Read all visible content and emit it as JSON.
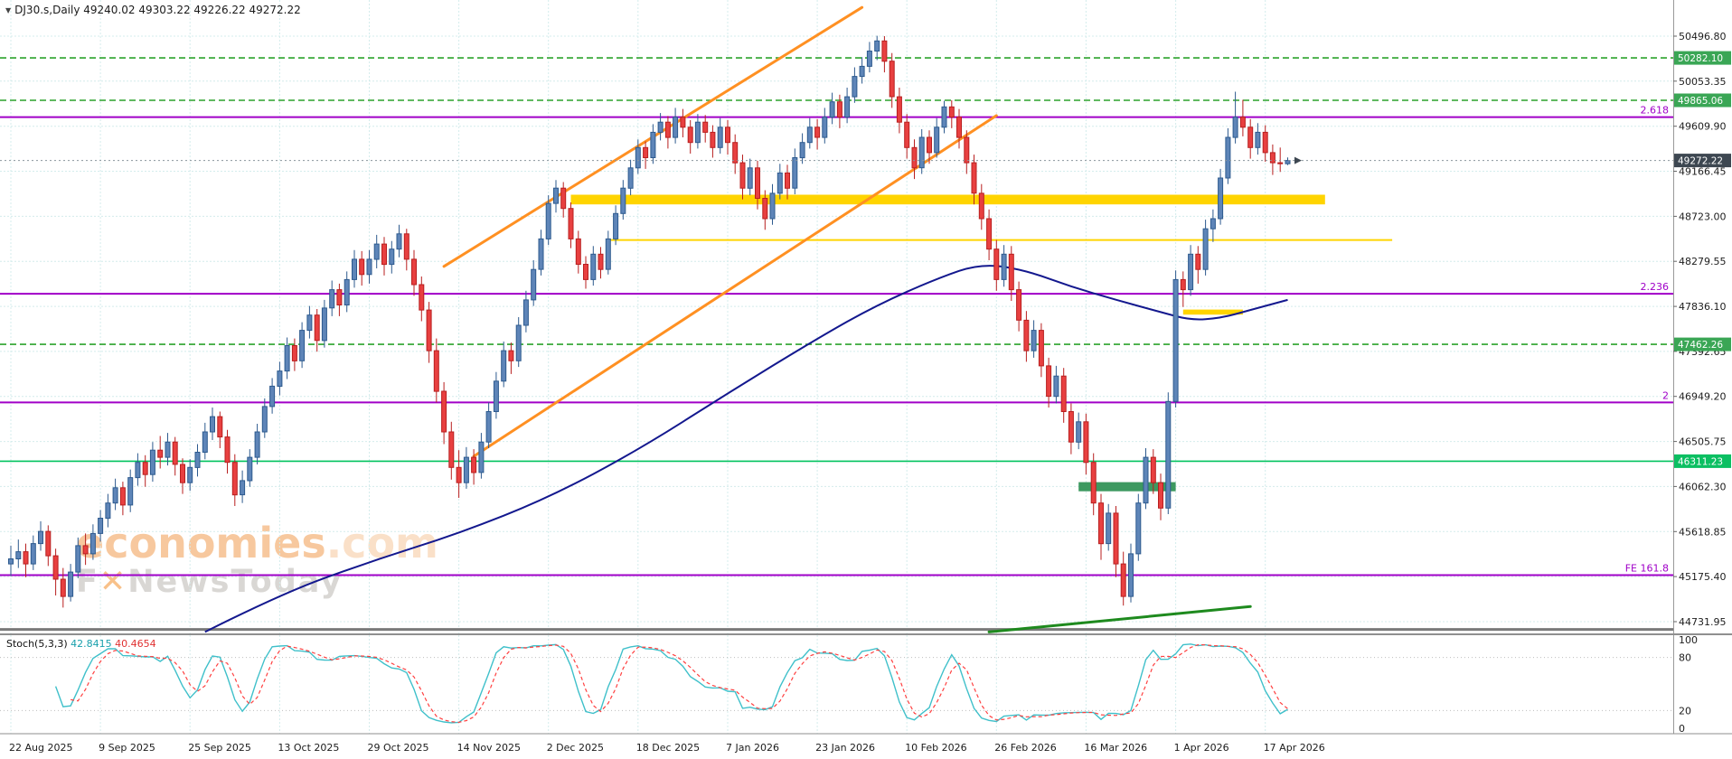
{
  "header": {
    "text": "DJ30.s,Daily 49240.02 49303.22 49226.22 49272.22"
  },
  "watermark": {
    "brand": "economies",
    "tld": ".com",
    "tag_a": "F",
    "tag_x": "✕",
    "tag_b": "NewsToday"
  },
  "chart_data": {
    "type": "candlestick",
    "symbol": "DJ30.s",
    "timeframe": "Daily",
    "current_ohlc": {
      "open": 49240.02,
      "high": 49303.22,
      "low": 49226.22,
      "close": 49272.22
    },
    "y_ticks": [
      50496.8,
      50053.35,
      49609.9,
      49166.45,
      48723.0,
      48279.55,
      47836.1,
      47392.65,
      46949.2,
      46505.75,
      46062.3,
      45618.85,
      45175.4,
      44731.95
    ],
    "x_labels": [
      {
        "bar": 0,
        "label": "22 Aug 2025"
      },
      {
        "bar": 12,
        "label": "9 Sep 2025"
      },
      {
        "bar": 24,
        "label": "25 Sep 2025"
      },
      {
        "bar": 36,
        "label": "13 Oct 2025"
      },
      {
        "bar": 48,
        "label": "29 Oct 2025"
      },
      {
        "bar": 60,
        "label": "14 Nov 2025"
      },
      {
        "bar": 72,
        "label": "2 Dec 2025"
      },
      {
        "bar": 84,
        "label": "18 Dec 2025"
      },
      {
        "bar": 96,
        "label": "7 Jan 2026"
      },
      {
        "bar": 108,
        "label": "23 Jan 2026"
      },
      {
        "bar": 120,
        "label": "10 Feb 2026"
      },
      {
        "bar": 132,
        "label": "26 Feb 2026"
      },
      {
        "bar": 144,
        "label": "16 Mar 2026"
      },
      {
        "bar": 156,
        "label": "1 Apr 2026"
      },
      {
        "bar": 168,
        "label": "17 Apr 2026"
      }
    ],
    "badges": [
      {
        "price": 50282.1,
        "label": "50282.10",
        "color": "#3aa655"
      },
      {
        "price": 49865.06,
        "label": "49865.06",
        "color": "#3aa655"
      },
      {
        "price": 47462.26,
        "label": "47462.26",
        "color": "#3aa655"
      },
      {
        "price": 46311.23,
        "label": "46311.23",
        "color": "#0bbf62"
      }
    ],
    "current_price": {
      "price": 49272.22,
      "label": "49272.22",
      "color": "#3d4751"
    },
    "levels": {
      "green_dashed": [
        50282.1,
        49865.06,
        47462.26
      ],
      "green_solid": 46311.23,
      "gray": 44655,
      "purple": [
        {
          "price": 49700,
          "label": "2.618"
        },
        {
          "price": 47960,
          "label": "2.236"
        },
        {
          "price": 46890,
          "label": "2"
        },
        {
          "price": 45190,
          "label": "FE 161.8"
        }
      ]
    },
    "zones": [
      {
        "b1": 75,
        "b2": 176,
        "p1": 48935,
        "p2": 48840,
        "color": "#ffd400"
      },
      {
        "b1": 157,
        "b2": 165,
        "p1": 47805,
        "p2": 47755,
        "color": "#ffd400"
      },
      {
        "b1": 143,
        "b2": 156,
        "p1": 46105,
        "p2": 46015,
        "color": "#3d9960"
      }
    ],
    "yellow_line": {
      "b1": 80,
      "b2": 185,
      "price": 48490
    },
    "trendlines": [
      {
        "b1": 58,
        "p1": 48230,
        "b2": 114,
        "p2": 50780,
        "color": "#ff9022",
        "width": 3
      },
      {
        "b1": 62,
        "p1": 46360,
        "b2": 132,
        "p2": 49715,
        "color": "#ff9022",
        "width": 3
      },
      {
        "b1": 131,
        "p1": 44630,
        "b2": 166,
        "p2": 44880,
        "color": "#1e8a1e",
        "width": 3
      }
    ],
    "ma_line": {
      "color": "#13188e",
      "points": [
        [
          26,
          44630
        ],
        [
          36,
          45000
        ],
        [
          48,
          45320
        ],
        [
          60,
          45600
        ],
        [
          72,
          45950
        ],
        [
          84,
          46420
        ],
        [
          96,
          46980
        ],
        [
          108,
          47520
        ],
        [
          116,
          47850
        ],
        [
          124,
          48110
        ],
        [
          130,
          48260
        ],
        [
          136,
          48190
        ],
        [
          142,
          48030
        ],
        [
          148,
          47900
        ],
        [
          154,
          47780
        ],
        [
          158,
          47700
        ],
        [
          162,
          47720
        ],
        [
          166,
          47800
        ],
        [
          171,
          47900
        ]
      ]
    },
    "stochastic": {
      "name": "Stoch(5,3,3)",
      "k": "42.8415",
      "d": "40.4654",
      "period_k": 5,
      "period_d": 3,
      "slowing": 3,
      "axis_labels": [
        100,
        80,
        20,
        0
      ],
      "levels": [
        80,
        20
      ]
    },
    "candles": [
      [
        45300,
        45480,
        45180,
        45350
      ],
      [
        45350,
        45540,
        45260,
        45420
      ],
      [
        45420,
        45500,
        45170,
        45300
      ],
      [
        45300,
        45580,
        45240,
        45500
      ],
      [
        45500,
        45720,
        45430,
        45620
      ],
      [
        45620,
        45680,
        45280,
        45380
      ],
      [
        45380,
        45450,
        44990,
        45150
      ],
      [
        45150,
        45260,
        44870,
        44980
      ],
      [
        44980,
        45300,
        44930,
        45220
      ],
      [
        45220,
        45560,
        45160,
        45480
      ],
      [
        45480,
        45600,
        45290,
        45400
      ],
      [
        45400,
        45690,
        45340,
        45600
      ],
      [
        45600,
        45830,
        45520,
        45750
      ],
      [
        45750,
        45990,
        45660,
        45900
      ],
      [
        45900,
        46140,
        45830,
        46050
      ],
      [
        46050,
        46110,
        45780,
        45880
      ],
      [
        45880,
        46230,
        45810,
        46150
      ],
      [
        46150,
        46390,
        46070,
        46300
      ],
      [
        46300,
        46370,
        46060,
        46180
      ],
      [
        46180,
        46500,
        46110,
        46420
      ],
      [
        46420,
        46560,
        46240,
        46350
      ],
      [
        46350,
        46590,
        46270,
        46500
      ],
      [
        46500,
        46550,
        46170,
        46280
      ],
      [
        46280,
        46340,
        45990,
        46100
      ],
      [
        46100,
        46330,
        46020,
        46250
      ],
      [
        46250,
        46480,
        46160,
        46400
      ],
      [
        46400,
        46690,
        46330,
        46600
      ],
      [
        46600,
        46840,
        46520,
        46750
      ],
      [
        46750,
        46800,
        46440,
        46550
      ],
      [
        46550,
        46620,
        46190,
        46300
      ],
      [
        46300,
        46380,
        45870,
        45980
      ],
      [
        45980,
        46220,
        45900,
        46120
      ],
      [
        46120,
        46430,
        46060,
        46350
      ],
      [
        46350,
        46680,
        46280,
        46600
      ],
      [
        46600,
        46930,
        46540,
        46850
      ],
      [
        46850,
        47130,
        46780,
        47050
      ],
      [
        47050,
        47290,
        46960,
        47200
      ],
      [
        47200,
        47530,
        47120,
        47450
      ],
      [
        47450,
        47520,
        47200,
        47300
      ],
      [
        47300,
        47680,
        47230,
        47600
      ],
      [
        47600,
        47840,
        47520,
        47750
      ],
      [
        47750,
        47810,
        47390,
        47500
      ],
      [
        47500,
        47900,
        47430,
        47820
      ],
      [
        47820,
        48090,
        47740,
        48000
      ],
      [
        48000,
        48060,
        47740,
        47850
      ],
      [
        47850,
        48180,
        47780,
        48100
      ],
      [
        48100,
        48390,
        48020,
        48300
      ],
      [
        48300,
        48380,
        48040,
        48150
      ],
      [
        48150,
        48390,
        48060,
        48300
      ],
      [
        48300,
        48540,
        48210,
        48450
      ],
      [
        48450,
        48520,
        48140,
        48250
      ],
      [
        48250,
        48480,
        48160,
        48400
      ],
      [
        48400,
        48640,
        48320,
        48550
      ],
      [
        48550,
        48600,
        48190,
        48300
      ],
      [
        48300,
        48390,
        47940,
        48050
      ],
      [
        48050,
        48130,
        47690,
        47800
      ],
      [
        47800,
        47880,
        47280,
        47400
      ],
      [
        47400,
        47520,
        46890,
        47000
      ],
      [
        47000,
        47090,
        46480,
        46600
      ],
      [
        46600,
        46700,
        46130,
        46250
      ],
      [
        46250,
        46420,
        45950,
        46100
      ],
      [
        46100,
        46450,
        46040,
        46350
      ],
      [
        46350,
        46430,
        46080,
        46200
      ],
      [
        46200,
        46590,
        46140,
        46500
      ],
      [
        46500,
        46890,
        46440,
        46800
      ],
      [
        46800,
        47190,
        46730,
        47100
      ],
      [
        47100,
        47490,
        47040,
        47400
      ],
      [
        47400,
        47480,
        47170,
        47300
      ],
      [
        47300,
        47730,
        47240,
        47650
      ],
      [
        47650,
        47990,
        47580,
        47900
      ],
      [
        47900,
        48290,
        47840,
        48200
      ],
      [
        48200,
        48590,
        48140,
        48500
      ],
      [
        48500,
        48930,
        48440,
        48850
      ],
      [
        48850,
        49080,
        48760,
        49000
      ],
      [
        49000,
        49060,
        48710,
        48800
      ],
      [
        48800,
        48860,
        48410,
        48500
      ],
      [
        48500,
        48580,
        48160,
        48250
      ],
      [
        48250,
        48330,
        48010,
        48100
      ],
      [
        48100,
        48430,
        48040,
        48350
      ],
      [
        48350,
        48420,
        48110,
        48200
      ],
      [
        48200,
        48580,
        48150,
        48500
      ],
      [
        48500,
        48830,
        48440,
        48750
      ],
      [
        48750,
        49080,
        48690,
        49000
      ],
      [
        49000,
        49280,
        48930,
        49200
      ],
      [
        49200,
        49480,
        49140,
        49400
      ],
      [
        49400,
        49460,
        49190,
        49300
      ],
      [
        49300,
        49630,
        49240,
        49550
      ],
      [
        49550,
        49740,
        49470,
        49650
      ],
      [
        49650,
        49710,
        49390,
        49500
      ],
      [
        49500,
        49790,
        49440,
        49700
      ],
      [
        49700,
        49780,
        49500,
        49600
      ],
      [
        49600,
        49670,
        49340,
        49450
      ],
      [
        49450,
        49730,
        49390,
        49650
      ],
      [
        49650,
        49720,
        49450,
        49550
      ],
      [
        49550,
        49620,
        49300,
        49400
      ],
      [
        49400,
        49690,
        49340,
        49600
      ],
      [
        49600,
        49670,
        49330,
        49450
      ],
      [
        49450,
        49530,
        49140,
        49250
      ],
      [
        49250,
        49330,
        48890,
        49000
      ],
      [
        49000,
        49290,
        48930,
        49200
      ],
      [
        49200,
        49270,
        48790,
        48900
      ],
      [
        48900,
        48980,
        48590,
        48700
      ],
      [
        48700,
        49040,
        48640,
        48950
      ],
      [
        48950,
        49240,
        48890,
        49150
      ],
      [
        49150,
        49230,
        48890,
        49000
      ],
      [
        49000,
        49390,
        48940,
        49300
      ],
      [
        49300,
        49540,
        49240,
        49450
      ],
      [
        49450,
        49690,
        49390,
        49600
      ],
      [
        49600,
        49680,
        49380,
        49500
      ],
      [
        49500,
        49790,
        49440,
        49700
      ],
      [
        49700,
        49940,
        49630,
        49850
      ],
      [
        49850,
        49920,
        49590,
        49700
      ],
      [
        49700,
        49990,
        49640,
        49900
      ],
      [
        49900,
        50190,
        49840,
        50100
      ],
      [
        50100,
        50290,
        50030,
        50200
      ],
      [
        50200,
        50440,
        50140,
        50350
      ],
      [
        50350,
        50500,
        50260,
        50450
      ],
      [
        50450,
        50497,
        50140,
        50250
      ],
      [
        50250,
        50330,
        49790,
        49900
      ],
      [
        49900,
        49990,
        49540,
        49650
      ],
      [
        49650,
        49730,
        49290,
        49400
      ],
      [
        49400,
        49480,
        49090,
        49200
      ],
      [
        49200,
        49580,
        49140,
        49500
      ],
      [
        49500,
        49570,
        49240,
        49350
      ],
      [
        49350,
        49690,
        49300,
        49600
      ],
      [
        49600,
        49860,
        49540,
        49800
      ],
      [
        49800,
        49865,
        49590,
        49700
      ],
      [
        49700,
        49780,
        49390,
        49500
      ],
      [
        49500,
        49570,
        49140,
        49250
      ],
      [
        49250,
        49330,
        48840,
        48950
      ],
      [
        48950,
        49040,
        48590,
        48700
      ],
      [
        48700,
        48790,
        48290,
        48400
      ],
      [
        48400,
        48490,
        47990,
        48100
      ],
      [
        48100,
        48440,
        48030,
        48350
      ],
      [
        48350,
        48430,
        47890,
        48000
      ],
      [
        48000,
        48080,
        47590,
        47700
      ],
      [
        47700,
        47790,
        47290,
        47400
      ],
      [
        47400,
        47700,
        47330,
        47600
      ],
      [
        47600,
        47670,
        47140,
        47250
      ],
      [
        47250,
        47330,
        46840,
        46950
      ],
      [
        46950,
        47250,
        46880,
        47150
      ],
      [
        47150,
        47230,
        46690,
        46800
      ],
      [
        46800,
        46880,
        46380,
        46500
      ],
      [
        46500,
        46790,
        46430,
        46700
      ],
      [
        46700,
        46780,
        46180,
        46300
      ],
      [
        46300,
        46390,
        45780,
        45900
      ],
      [
        45900,
        45990,
        45340,
        45500
      ],
      [
        45500,
        45890,
        45430,
        45800
      ],
      [
        45800,
        45870,
        45170,
        45300
      ],
      [
        45300,
        45420,
        44890,
        44980
      ],
      [
        44980,
        45500,
        44920,
        45400
      ],
      [
        45400,
        45990,
        45330,
        45900
      ],
      [
        45900,
        46440,
        45840,
        46350
      ],
      [
        46350,
        46430,
        45990,
        46100
      ],
      [
        46100,
        46190,
        45730,
        45850
      ],
      [
        45850,
        46990,
        45790,
        46900
      ],
      [
        46900,
        48190,
        46840,
        48100
      ],
      [
        48100,
        48180,
        47830,
        48000
      ],
      [
        48000,
        48440,
        47940,
        48350
      ],
      [
        48350,
        48430,
        48060,
        48200
      ],
      [
        48200,
        48690,
        48140,
        48600
      ],
      [
        48600,
        48790,
        48470,
        48700
      ],
      [
        48700,
        49190,
        48640,
        49100
      ],
      [
        49100,
        49590,
        49040,
        49500
      ],
      [
        49500,
        49950,
        49440,
        49700
      ],
      [
        49700,
        49870,
        49510,
        49600
      ],
      [
        49600,
        49680,
        49290,
        49400
      ],
      [
        49400,
        49640,
        49330,
        49550
      ],
      [
        49550,
        49620,
        49260,
        49350
      ],
      [
        49350,
        49430,
        49130,
        49250
      ],
      [
        49250,
        49400,
        49160,
        49240
      ],
      [
        49240.02,
        49303.22,
        49226.22,
        49272.22
      ]
    ],
    "style": {
      "up_fill": "#5e85b8",
      "up_stroke": "#2d5a8e",
      "down_fill": "#e84040",
      "down_stroke": "#b81f1f",
      "grid": "#d4ecec",
      "axis_text": "#1d1d1d",
      "green_dashed": "#2ca22c",
      "green_solid": "#00c25e",
      "purple": "#a000c8",
      "gray_line": "#7a7a7a",
      "yellow": "#ffd400",
      "k_color": "#3fc0ca",
      "d_color": "#ff4040"
    }
  }
}
